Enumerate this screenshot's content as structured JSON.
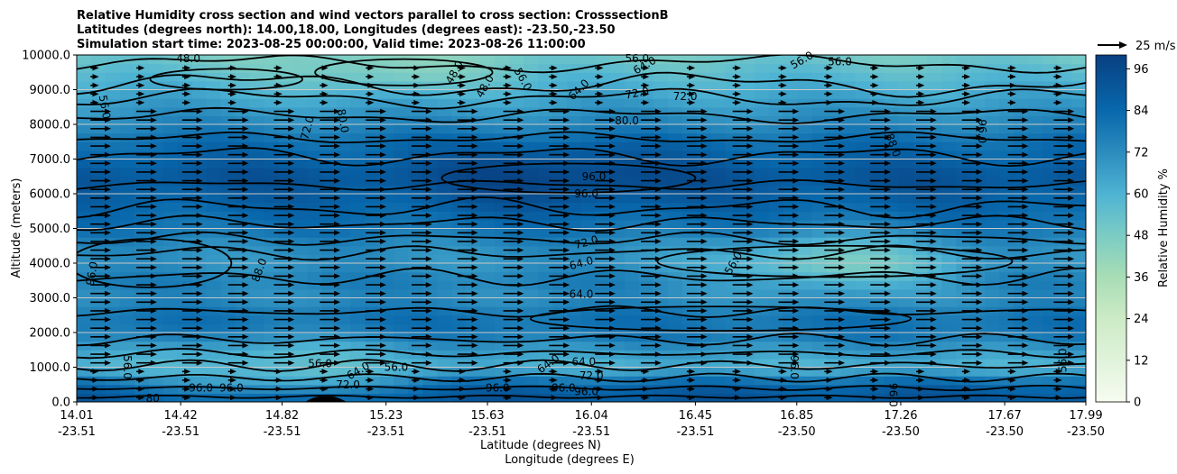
{
  "chart_data": {
    "type": "heatmap",
    "title_lines": [
      "Relative Humidity cross section and wind vectors parallel to cross section: CrosssectionB",
      "Latitudes (degrees north): 14.00,18.00, Longitudes (degrees east): -23.50,-23.50",
      "Simulation start time: 2023-08-25 00:00:00, Valid time: 2023-08-26 11:00:00"
    ],
    "ylabel": "Altitude (meters)",
    "xlabel_lines": [
      "Latitude (degrees N)",
      "Longitude (degrees E)"
    ],
    "colorbar_label": "Relative Humidity %",
    "colorbar_ticks": [
      "0",
      "12",
      "24",
      "36",
      "48",
      "60",
      "72",
      "84",
      "96"
    ],
    "colorbar_range": [
      0,
      100
    ],
    "wind_key_label": "25 m/s",
    "ylim": [
      0,
      10000
    ],
    "yticks": [
      "0.0",
      "1000.0",
      "2000.0",
      "3000.0",
      "4000.0",
      "5000.0",
      "6000.0",
      "7000.0",
      "8000.0",
      "9000.0",
      "10000.0"
    ],
    "xticks": [
      {
        "lat": "14.01",
        "lon": "-23.51"
      },
      {
        "lat": "14.42",
        "lon": "-23.51"
      },
      {
        "lat": "14.82",
        "lon": "-23.51"
      },
      {
        "lat": "15.23",
        "lon": "-23.51"
      },
      {
        "lat": "15.63",
        "lon": "-23.51"
      },
      {
        "lat": "16.04",
        "lon": "-23.51"
      },
      {
        "lat": "16.45",
        "lon": "-23.51"
      },
      {
        "lat": "16.85",
        "lon": "-23.50"
      },
      {
        "lat": "17.26",
        "lon": "-23.50"
      },
      {
        "lat": "17.67",
        "lon": "-23.50"
      },
      {
        "lat": "17.99",
        "lon": "-23.50"
      }
    ],
    "rh_profile": [
      {
        "alt": 0,
        "rh": 92
      },
      {
        "alt": 500,
        "rh": 86
      },
      {
        "alt": 1000,
        "rh": 60
      },
      {
        "alt": 1500,
        "rh": 68
      },
      {
        "alt": 2000,
        "rh": 80
      },
      {
        "alt": 2500,
        "rh": 80
      },
      {
        "alt": 3000,
        "rh": 72
      },
      {
        "alt": 3500,
        "rh": 76
      },
      {
        "alt": 4000,
        "rh": 70
      },
      {
        "alt": 4500,
        "rh": 72
      },
      {
        "alt": 5000,
        "rh": 80
      },
      {
        "alt": 5500,
        "rh": 84
      },
      {
        "alt": 6000,
        "rh": 88
      },
      {
        "alt": 6500,
        "rh": 92
      },
      {
        "alt": 7000,
        "rh": 86
      },
      {
        "alt": 7500,
        "rh": 82
      },
      {
        "alt": 8000,
        "rh": 74
      },
      {
        "alt": 8500,
        "rh": 68
      },
      {
        "alt": 9000,
        "rh": 62
      },
      {
        "alt": 9500,
        "rh": 56
      },
      {
        "alt": 10000,
        "rh": 50
      }
    ],
    "rh_features": [
      {
        "lat": 15.9,
        "alt": 6500,
        "rh": 98,
        "name": "moist-core"
      },
      {
        "lat": 17.0,
        "alt": 4000,
        "rh": 48,
        "name": "dry-pocket"
      },
      {
        "lat": 15.2,
        "alt": 9800,
        "rh": 44,
        "name": "dry-top"
      },
      {
        "lat": 14.8,
        "alt": 1000,
        "rh": 55,
        "name": "dry-low"
      }
    ],
    "contour_labels": [
      {
        "text": "48.0",
        "lat": 14.45,
        "alt": 9900,
        "rot": 0
      },
      {
        "text": "48.0",
        "lat": 15.5,
        "alt": 9500,
        "rot": -60
      },
      {
        "text": "48.0",
        "lat": 15.62,
        "alt": 9100,
        "rot": -60
      },
      {
        "text": "56.0",
        "lat": 15.77,
        "alt": 9300,
        "rot": 60
      },
      {
        "text": "56.0",
        "lat": 16.22,
        "alt": 9900,
        "rot": 0
      },
      {
        "text": "64.0",
        "lat": 16.25,
        "alt": 9700,
        "rot": -30
      },
      {
        "text": "64.0",
        "lat": 15.99,
        "alt": 9000,
        "rot": -45
      },
      {
        "text": "72.0",
        "lat": 16.22,
        "alt": 8900,
        "rot": -10
      },
      {
        "text": "72.0",
        "lat": 16.41,
        "alt": 8800,
        "rot": 0
      },
      {
        "text": "56.0",
        "lat": 17.02,
        "alt": 9800,
        "rot": 0
      },
      {
        "text": "56.0",
        "lat": 16.87,
        "alt": 9850,
        "rot": -30
      },
      {
        "text": "56.0",
        "lat": 14.12,
        "alt": 8500,
        "rot": 80
      },
      {
        "text": "80.0",
        "lat": 15.06,
        "alt": 8100,
        "rot": 80
      },
      {
        "text": "72.0",
        "lat": 14.92,
        "alt": 7900,
        "rot": -75
      },
      {
        "text": "80.0",
        "lat": 16.18,
        "alt": 8100,
        "rot": 0
      },
      {
        "text": "88.0",
        "lat": 17.23,
        "alt": 7400,
        "rot": 70
      },
      {
        "text": "96.0",
        "lat": 17.58,
        "alt": 7800,
        "rot": 90
      },
      {
        "text": "96.0",
        "lat": 16.05,
        "alt": 6500,
        "rot": 0
      },
      {
        "text": "96.0",
        "lat": 16.02,
        "alt": 6000,
        "rot": 0
      },
      {
        "text": "72.0",
        "lat": 16.02,
        "alt": 4600,
        "rot": -15
      },
      {
        "text": "64.0",
        "lat": 16.0,
        "alt": 4000,
        "rot": -15
      },
      {
        "text": "56.0",
        "lat": 16.6,
        "alt": 4000,
        "rot": -60
      },
      {
        "text": "64.0",
        "lat": 16.0,
        "alt": 3100,
        "rot": 0
      },
      {
        "text": "96.0",
        "lat": 14.07,
        "alt": 3700,
        "rot": -80
      },
      {
        "text": "88.0",
        "lat": 14.73,
        "alt": 3800,
        "rot": -70
      },
      {
        "text": "56.0",
        "lat": 14.21,
        "alt": 1000,
        "rot": 90
      },
      {
        "text": "56.0",
        "lat": 14.97,
        "alt": 1100,
        "rot": 0
      },
      {
        "text": "56.0",
        "lat": 15.27,
        "alt": 1000,
        "rot": 0
      },
      {
        "text": "64.0",
        "lat": 15.12,
        "alt": 900,
        "rot": -30
      },
      {
        "text": "72.0",
        "lat": 15.08,
        "alt": 500,
        "rot": 0
      },
      {
        "text": "64.0",
        "lat": 15.87,
        "alt": 1100,
        "rot": -35
      },
      {
        "text": "64.0",
        "lat": 16.01,
        "alt": 1150,
        "rot": 0
      },
      {
        "text": "72.0",
        "lat": 16.04,
        "alt": 750,
        "rot": 0
      },
      {
        "text": "96.0",
        "lat": 14.5,
        "alt": 400,
        "rot": 0
      },
      {
        "text": "96.0",
        "lat": 14.62,
        "alt": 400,
        "rot": 0
      },
      {
        "text": "80",
        "lat": 14.31,
        "alt": 100,
        "rot": 0
      },
      {
        "text": "96.0",
        "lat": 15.93,
        "alt": 400,
        "rot": 0
      },
      {
        "text": "96.0",
        "lat": 15.67,
        "alt": 400,
        "rot": 0
      },
      {
        "text": "96.0",
        "lat": 16.02,
        "alt": 300,
        "rot": 0
      },
      {
        "text": "96.0",
        "lat": 16.84,
        "alt": 1000,
        "rot": 90
      },
      {
        "text": "56.0",
        "lat": 17.9,
        "alt": 1200,
        "rot": -90
      },
      {
        "text": "96.0",
        "lat": 17.23,
        "alt": 200,
        "rot": 90
      }
    ],
    "wind": {
      "direction": "parallel",
      "u_ms": 20,
      "key_ms": 25
    }
  }
}
